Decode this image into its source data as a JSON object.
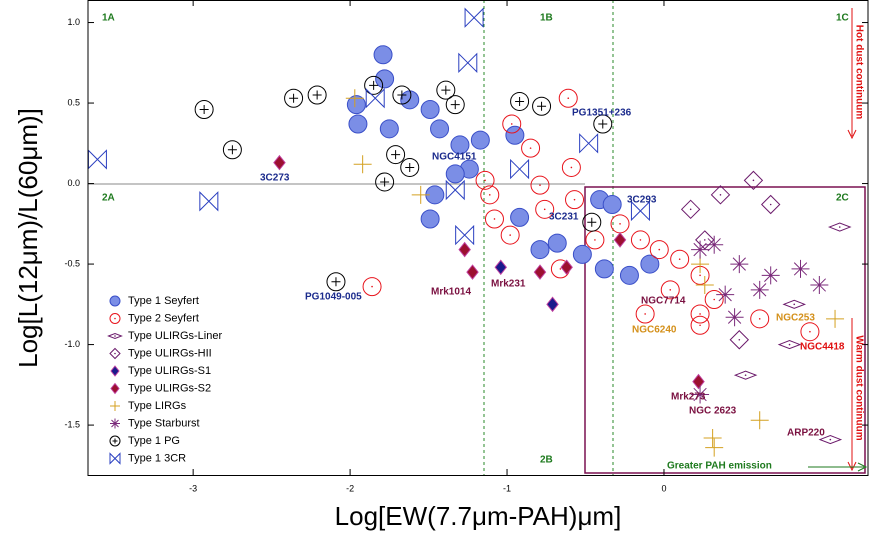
{
  "chart_data": {
    "type": "scatter",
    "xlabel": "Log[EW(7.7μm-PAH)μm]",
    "ylabel": "Log[L(12μm)/L(60μm)]",
    "xlim": [
      -3.67,
      1.3
    ],
    "ylim": [
      -1.81,
      1.14
    ],
    "xticks": [
      -3,
      -2,
      -1,
      0
    ],
    "yticks": [
      {
        "value": 1,
        "label": "1.0"
      },
      {
        "value": 0.5,
        "label": "0.5"
      },
      {
        "value": 0,
        "label": "0.0"
      },
      {
        "value": -0.5,
        "label": "-0.5"
      },
      {
        "value": -1,
        "label": "-1.0"
      },
      {
        "value": -1.5,
        "label": "-1.5"
      }
    ],
    "legend": "lower left",
    "series": [
      {
        "name": "Type 1 Seyfert",
        "color": "#3a4fc8",
        "marker": "filled-circle",
        "x": [
          -1.79,
          -1.78,
          -1.96,
          -1.95,
          -1.75,
          -1.62,
          -1.49,
          -1.43,
          -1.3,
          -1.17,
          -0.95,
          -1.24,
          -1.46,
          -1.49,
          -0.92,
          -0.68,
          -0.41,
          -0.33,
          -0.52,
          -0.38,
          -0.22,
          -0.09,
          -0.79,
          -1.33
        ],
        "y": [
          0.8,
          0.65,
          0.49,
          0.37,
          0.34,
          0.52,
          0.46,
          0.34,
          0.24,
          0.27,
          0.3,
          0.09,
          -0.07,
          -0.22,
          -0.21,
          -0.37,
          -0.1,
          -0.13,
          -0.44,
          -0.53,
          -0.57,
          -0.5,
          -0.41,
          0.06
        ]
      },
      {
        "name": "Type 2 Seyfert",
        "color": "#e8141c",
        "marker": "circle",
        "x": [
          -0.61,
          -0.97,
          -0.85,
          -0.59,
          -0.79,
          -1.11,
          -1.08,
          -0.98,
          -0.76,
          -0.57,
          -0.44,
          -0.28,
          -0.15,
          -0.03,
          0.1,
          0.23,
          0.32,
          0.23,
          0.04,
          -0.12,
          0.23,
          0.61,
          0.93,
          -1.86,
          -1.14,
          -0.66
        ],
        "y": [
          0.53,
          0.37,
          0.22,
          0.1,
          -0.01,
          -0.07,
          -0.22,
          -0.32,
          -0.16,
          -0.1,
          -0.35,
          -0.25,
          -0.35,
          -0.41,
          -0.47,
          -0.57,
          -0.72,
          -0.81,
          -0.66,
          -0.81,
          -0.88,
          -0.84,
          -0.92,
          -0.64,
          0.02,
          -0.53
        ]
      },
      {
        "name": "Type ULIRGs-Liner",
        "color": "#6b1a6b",
        "marker": "sideways-diamond",
        "x": [
          1.12,
          0.83,
          0.8,
          0.52,
          1.06
        ],
        "y": [
          -0.27,
          -0.75,
          -1.0,
          -1.19,
          -1.59
        ]
      },
      {
        "name": "Type ULIRGs-HII",
        "color": "#6b1a6b",
        "marker": "diamond",
        "x": [
          0.57,
          0.68,
          0.36,
          0.17,
          0.48,
          0.26
        ],
        "y": [
          0.02,
          -0.13,
          -0.07,
          -0.16,
          -0.97,
          -0.35
        ]
      },
      {
        "name": "Type ULIRGs-S1",
        "color": "#1a1a8c",
        "marker": "filled-diamond",
        "x": [
          -1.04,
          -0.71
        ],
        "y": [
          -0.52,
          -0.75
        ]
      },
      {
        "name": "Type ULIRGs-S2",
        "color": "#9c1030",
        "marker": "filled-diamond",
        "x": [
          -2.45,
          -1.27,
          -1.22,
          -0.79,
          -0.62,
          -0.28,
          0.22
        ],
        "y": [
          0.13,
          -0.41,
          -0.55,
          -0.55,
          -0.52,
          -0.35,
          -1.23
        ]
      },
      {
        "name": "Type LIRGs",
        "color": "#d4a020",
        "marker": "plus",
        "x": [
          -1.92,
          -1.97,
          -1.55,
          0.23,
          0.26,
          0.31,
          0.32,
          0.61,
          1.09
        ],
        "y": [
          0.12,
          0.53,
          -0.07,
          -0.5,
          -0.63,
          -1.58,
          -1.64,
          -1.47,
          -0.84
        ]
      },
      {
        "name": "Type Starburst",
        "color": "#7a2a7a",
        "marker": "asterisk",
        "x": [
          0.23,
          0.32,
          0.48,
          0.68,
          0.87,
          0.99,
          0.39,
          0.45,
          0.23,
          0.61
        ],
        "y": [
          -0.41,
          -0.38,
          -0.5,
          -0.57,
          -0.53,
          -0.63,
          -0.69,
          -0.83,
          -1.31,
          -0.66
        ]
      },
      {
        "name": "Type 1 PG",
        "color": "#000000",
        "marker": "circle-plus",
        "x": [
          -2.93,
          -2.75,
          -2.36,
          -2.21,
          -1.85,
          -1.67,
          -1.33,
          -0.92,
          -0.78,
          -1.78,
          -1.62,
          -2.09,
          -0.39,
          -1.71,
          -1.39,
          -0.46
        ],
        "y": [
          0.46,
          0.21,
          0.53,
          0.55,
          0.61,
          0.55,
          0.49,
          0.51,
          0.48,
          0.01,
          0.1,
          -0.61,
          0.37,
          0.18,
          0.58,
          -0.24
        ]
      },
      {
        "name": "Type 1 3CR",
        "color": "#2a3fc0",
        "marker": "bowtie",
        "x": [
          -3.61,
          -2.9,
          -1.21,
          -1.25,
          -0.48,
          -0.15,
          -1.27,
          -1.33,
          -1.84,
          -0.92
        ],
        "y": [
          0.15,
          -0.11,
          1.03,
          0.75,
          0.25,
          -0.17,
          -0.32,
          -0.04,
          0.53,
          0.09
        ]
      }
    ],
    "annotations": [
      "1A",
      "1B",
      "1C",
      "2A",
      "2B",
      "2C",
      "3C273",
      "NGC4151",
      "PG1351+236",
      "3C293",
      "3C231",
      "PG1049-005",
      "Mrk1014",
      "Mrk231",
      "NGC7714",
      "NGC6240",
      "NGC253",
      "NGC4418",
      "Mrk273",
      "NGC 2623",
      "ARP220",
      "Hot dust continuum",
      "Warm dust continuum",
      "Greater PAH emission"
    ]
  }
}
